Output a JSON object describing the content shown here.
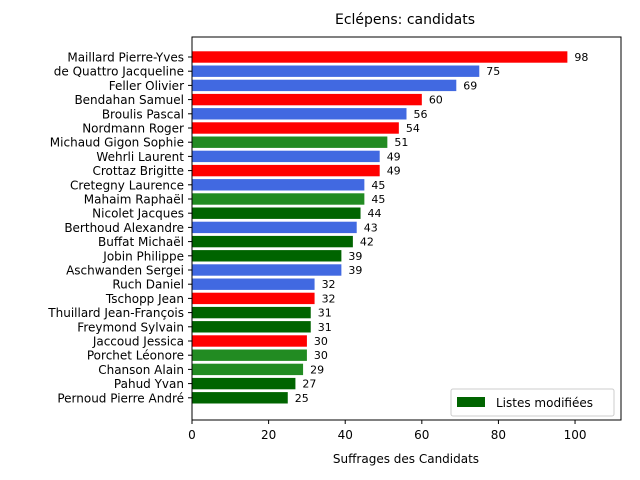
{
  "chart_data": {
    "type": "bar",
    "orientation": "horizontal",
    "title": "Eclépens: candidats",
    "xlabel": "Suffrages des Candidats",
    "ylabel": "",
    "xlim": [
      0,
      112
    ],
    "xticks": [
      0,
      20,
      40,
      60,
      80,
      100
    ],
    "grid": false,
    "legend": {
      "position": "bottom-right",
      "entries": [
        {
          "label": "Listes modifiées",
          "color": "#006400"
        }
      ]
    },
    "colors": {
      "red": "#ff0000",
      "blue": "#4169e1",
      "green": "#228b22",
      "darkgreen": "#006400"
    },
    "categories": [
      "Maillard Pierre-Yves",
      "de Quattro Jacqueline",
      "Feller Olivier",
      "Bendahan Samuel",
      "Broulis Pascal",
      "Nordmann Roger",
      "Michaud Gigon Sophie",
      "Wehrli Laurent",
      "Crottaz Brigitte",
      "Cretegny Laurence",
      "Mahaim Raphaël",
      "Nicolet Jacques",
      "Berthoud Alexandre",
      "Buffat Michaël",
      "Jobin Philippe",
      "Aschwanden Sergei",
      "Ruch Daniel",
      "Tschopp Jean",
      "Thuillard Jean-François",
      "Freymond Sylvain",
      "Jaccoud Jessica",
      "Porchet Léonore",
      "Chanson Alain",
      "Pahud Yvan",
      "Pernoud Pierre André"
    ],
    "values": [
      98,
      75,
      69,
      60,
      56,
      54,
      51,
      49,
      49,
      45,
      45,
      44,
      43,
      42,
      39,
      39,
      32,
      32,
      31,
      31,
      30,
      30,
      29,
      27,
      25
    ],
    "bar_colors": [
      "red",
      "blue",
      "blue",
      "red",
      "blue",
      "red",
      "green",
      "blue",
      "red",
      "blue",
      "green",
      "darkgreen",
      "blue",
      "darkgreen",
      "darkgreen",
      "blue",
      "blue",
      "red",
      "darkgreen",
      "darkgreen",
      "red",
      "green",
      "green",
      "darkgreen",
      "darkgreen"
    ]
  }
}
